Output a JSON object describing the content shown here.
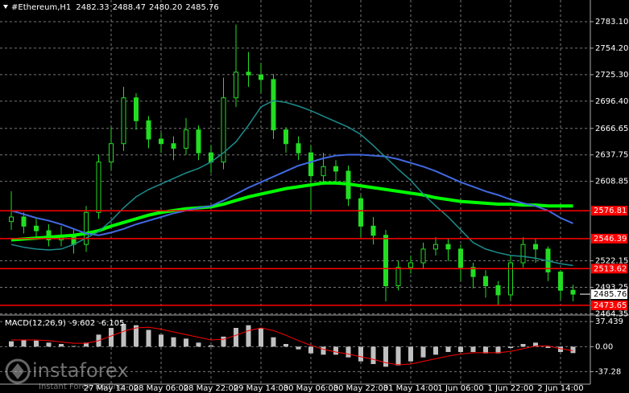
{
  "header": {
    "symbol": "#Ethereum,H1",
    "ohlc": [
      "2482.33",
      "2488.47",
      "2480.20",
      "2485.76"
    ]
  },
  "chart_data": [
    {
      "type": "candlestick",
      "categories": [
        null,
        null,
        null,
        null,
        null,
        null,
        null,
        null,
        "27 May 14:00",
        null,
        null,
        null,
        "28 May 06:00",
        null,
        null,
        null,
        "28 May 22:00",
        null,
        null,
        null,
        "29 May 14:00",
        null,
        null,
        null,
        "30 May 06:00",
        null,
        null,
        null,
        "30 May 22:00",
        null,
        null,
        null,
        "31 May 14:00",
        null,
        null,
        null,
        "1 Jun 06:00",
        null,
        null,
        null,
        "1 Jun 22:00",
        null,
        null,
        null,
        "2 Jun 14:00",
        null
      ],
      "open": [
        2565,
        2570,
        2560,
        2555,
        2545,
        2550,
        2540,
        2575,
        2630,
        2650,
        2700,
        2675,
        2655,
        2650,
        2645,
        2665,
        2640,
        2630,
        2700,
        2728,
        2725,
        2720,
        2665,
        2650,
        2640,
        2615,
        2625,
        2620,
        2590,
        2560,
        2550,
        2495,
        2515,
        2520,
        2535,
        2540,
        2535,
        2515,
        2505,
        2495,
        2485,
        2520,
        2540,
        2535,
        2510,
        2490
      ],
      "high": [
        2598,
        2575,
        2568,
        2562,
        2560,
        2556,
        2582,
        2638,
        2668,
        2712,
        2705,
        2680,
        2662,
        2658,
        2678,
        2670,
        2648,
        2722,
        2780,
        2750,
        2738,
        2726,
        2668,
        2658,
        2648,
        2640,
        2632,
        2626,
        2594,
        2570,
        2556,
        2522,
        2528,
        2542,
        2548,
        2546,
        2540,
        2520,
        2512,
        2500,
        2528,
        2548,
        2546,
        2538,
        2512,
        2496
      ],
      "low": [
        2556,
        2552,
        2546,
        2538,
        2538,
        2530,
        2532,
        2568,
        2622,
        2642,
        2665,
        2645,
        2640,
        2632,
        2638,
        2632,
        2618,
        2622,
        2690,
        2712,
        2705,
        2655,
        2640,
        2632,
        2575,
        2605,
        2608,
        2582,
        2548,
        2540,
        2478,
        2490,
        2508,
        2514,
        2528,
        2522,
        2500,
        2492,
        2482,
        2474,
        2480,
        2515,
        2520,
        2500,
        2480,
        2478
      ],
      "close": [
        2570,
        2560,
        2555,
        2545,
        2550,
        2540,
        2575,
        2630,
        2650,
        2700,
        2675,
        2655,
        2650,
        2645,
        2665,
        2640,
        2630,
        2700,
        2728,
        2725,
        2720,
        2665,
        2650,
        2640,
        2615,
        2625,
        2620,
        2590,
        2560,
        2550,
        2495,
        2515,
        2520,
        2535,
        2540,
        2535,
        2515,
        2505,
        2495,
        2485,
        2520,
        2540,
        2535,
        2510,
        2490,
        2485.76
      ],
      "candle_color": "#22dd22",
      "series": [
        {
          "color": "#00ff00",
          "line_width": 4,
          "values": [
            2545,
            2546,
            2547,
            2548,
            2549,
            2550,
            2552,
            2555,
            2560,
            2564,
            2568,
            2572,
            2575,
            2577,
            2579,
            2580,
            2581,
            2584,
            2588,
            2592,
            2595,
            2598,
            2601,
            2603,
            2605,
            2607,
            2607,
            2606,
            2604,
            2602,
            2600,
            2598,
            2596,
            2594,
            2591,
            2589,
            2587,
            2586,
            2585,
            2584,
            2584,
            2583,
            2583,
            2582,
            2582,
            2582
          ]
        },
        {
          "color": "#4169e1",
          "line_width": 2,
          "values": [
            2577,
            2573,
            2569,
            2566,
            2562,
            2557,
            2552,
            2550,
            2553,
            2557,
            2562,
            2566,
            2570,
            2574,
            2577,
            2580,
            2582,
            2588,
            2595,
            2602,
            2608,
            2614,
            2620,
            2626,
            2630,
            2634,
            2637,
            2638,
            2638,
            2637,
            2636,
            2633,
            2629,
            2625,
            2620,
            2614,
            2608,
            2603,
            2598,
            2594,
            2589,
            2585,
            2582,
            2577,
            2569,
            2563
          ]
        },
        {
          "color": "#1e8c8c",
          "line_width": 1.5,
          "values": [
            2540,
            2537,
            2535,
            2534,
            2535,
            2540,
            2547,
            2554,
            2566,
            2580,
            2592,
            2600,
            2606,
            2612,
            2618,
            2623,
            2630,
            2640,
            2652,
            2670,
            2690,
            2697,
            2695,
            2691,
            2686,
            2680,
            2674,
            2668,
            2660,
            2648,
            2635,
            2622,
            2610,
            2595,
            2582,
            2570,
            2556,
            2542,
            2535,
            2531,
            2528,
            2527,
            2525,
            2522,
            2519,
            2517
          ]
        }
      ],
      "levels": [
        2576.81,
        2546.39,
        2513.62,
        2473.65
      ],
      "level_color": "#ff0000",
      "price_label": 2485.76,
      "ylim": [
        2463,
        2805
      ],
      "yticks": [
        {
          "value": 2783.1,
          "label": "2783.10"
        },
        {
          "value": 2754.2,
          "label": "2754.20"
        },
        {
          "value": 2725.3,
          "label": "2725.30"
        },
        {
          "value": 2696.4,
          "label": "2696.40"
        },
        2666.65,
        2637.75,
        2608.85,
        2522.15,
        2493.25,
        2464.35
      ],
      "grid": true
    },
    {
      "type": "macd",
      "title": "MACD(12,26,9)",
      "title_values": [
        "-9.602",
        "-6.105"
      ],
      "histogram": [
        8,
        10,
        9,
        6,
        4,
        1,
        6,
        18,
        28,
        34,
        32,
        25,
        18,
        14,
        12,
        6,
        2,
        15,
        28,
        32,
        28,
        14,
        4,
        -4,
        -10,
        -12,
        -12,
        -16,
        -22,
        -26,
        -30,
        -28,
        -22,
        -16,
        -12,
        -8,
        -8,
        -8,
        -10,
        -10,
        -2,
        4,
        6,
        -2,
        -8,
        -9.602
      ],
      "histogram_color": "#c0c0c0",
      "signal": [
        10,
        10,
        10,
        9,
        7,
        5,
        5,
        9,
        16,
        23,
        28,
        29,
        26,
        22,
        18,
        14,
        10,
        11,
        17,
        24,
        28,
        24,
        17,
        9,
        2,
        -4,
        -8,
        -11,
        -15,
        -19,
        -24,
        -27,
        -26,
        -22,
        -18,
        -14,
        -11,
        -9,
        -9,
        -9,
        -7,
        -3,
        1,
        1,
        -3,
        -6.105
      ],
      "signal_color": "#ff0000",
      "ylim": [
        -56,
        46
      ],
      "yticks": [
        37.439,
        {
          "value": 0,
          "label": "0.00"
        },
        -37.28
      ]
    }
  ],
  "watermark": {
    "brand": "instaforex",
    "tagline": "Instant Forex Trading"
  }
}
